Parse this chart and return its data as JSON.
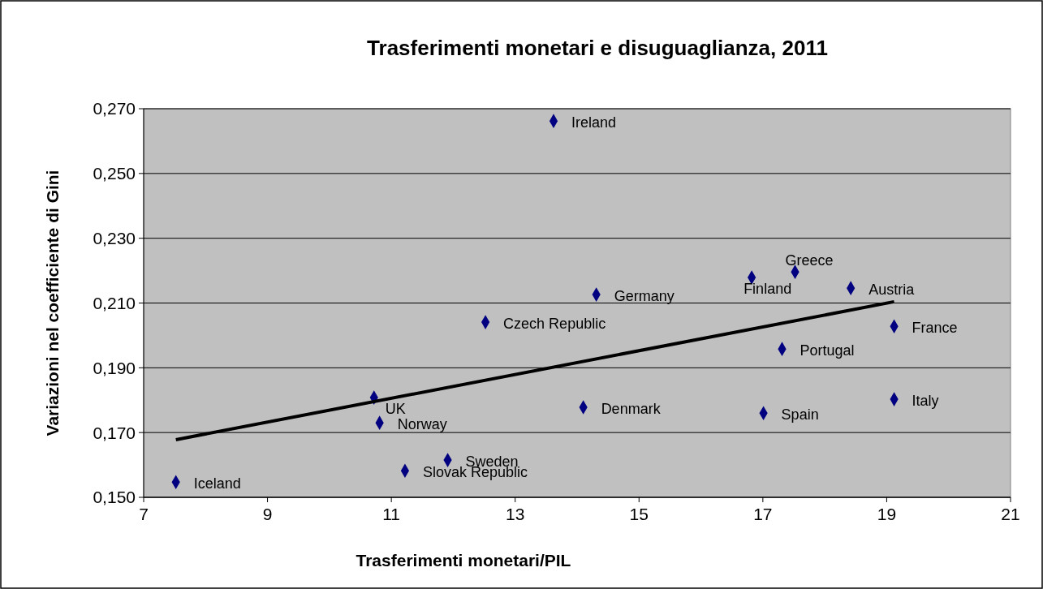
{
  "chart_data": {
    "type": "scatter",
    "title": "Trasferimenti monetari e disuguaglianza, 2011",
    "xlabel": "Trasferimenti monetari/PIL",
    "ylabel": "Variazioni nel coefficiente di Gini",
    "xlim": [
      7,
      21
    ],
    "xticks": [
      7,
      9,
      11,
      13,
      15,
      17,
      19,
      21
    ],
    "ylim": [
      0.15,
      0.27
    ],
    "yticks": [
      {
        "value": 0.15,
        "label": "0,150"
      },
      {
        "value": 0.17,
        "label": "0,170"
      },
      {
        "value": 0.19,
        "label": "0,190"
      },
      {
        "value": 0.21,
        "label": "0,210"
      },
      {
        "value": 0.23,
        "label": "0,230"
      },
      {
        "value": 0.25,
        "label": "0,250"
      },
      {
        "value": 0.27,
        "label": "0,270"
      }
    ],
    "grid": "y",
    "marker": "diamond",
    "series": [
      {
        "color": "#000080",
        "x": [
          13.62,
          17.52,
          16.82,
          18.42,
          14.31,
          12.52,
          19.12,
          17.31,
          10.72,
          19.12,
          14.1,
          17.01,
          10.81,
          11.91,
          11.22,
          7.52
        ],
        "values": [
          0.2662,
          0.2196,
          0.2179,
          0.2146,
          0.2126,
          0.2041,
          0.2028,
          0.1958,
          0.1808,
          0.1803,
          0.1778,
          0.176,
          0.173,
          0.1615,
          0.1582,
          0.1547
        ]
      },
      {
        "type": "line",
        "marker": "none",
        "color": "#000000",
        "x": [
          7.52,
          19.12
        ],
        "values": [
          0.1678,
          0.2104
        ]
      }
    ],
    "annotations": [
      {
        "text": "Ireland",
        "x": 13.62,
        "y": 0.2662
      },
      {
        "text": "Greece",
        "x": 17.52,
        "y": 0.2196
      },
      {
        "text": "Finland",
        "x": 16.82,
        "y": 0.2179
      },
      {
        "text": "Austria",
        "x": 18.42,
        "y": 0.2146
      },
      {
        "text": "Germany",
        "x": 14.31,
        "y": 0.2126
      },
      {
        "text": "Czech Republic",
        "x": 12.52,
        "y": 0.2041
      },
      {
        "text": "France",
        "x": 19.12,
        "y": 0.2028
      },
      {
        "text": "Portugal",
        "x": 17.31,
        "y": 0.1958
      },
      {
        "text": "UK",
        "x": 10.72,
        "y": 0.1808
      },
      {
        "text": "Italy",
        "x": 19.12,
        "y": 0.1803
      },
      {
        "text": "Denmark",
        "x": 14.1,
        "y": 0.1778
      },
      {
        "text": "Spain",
        "x": 17.01,
        "y": 0.176
      },
      {
        "text": "Norway",
        "x": 10.81,
        "y": 0.173
      },
      {
        "text": "Sweden",
        "x": 11.91,
        "y": 0.1615
      },
      {
        "text": "Slovak Republic",
        "x": 11.22,
        "y": 0.1582
      },
      {
        "text": "Iceland",
        "x": 7.52,
        "y": 0.1547
      }
    ]
  }
}
